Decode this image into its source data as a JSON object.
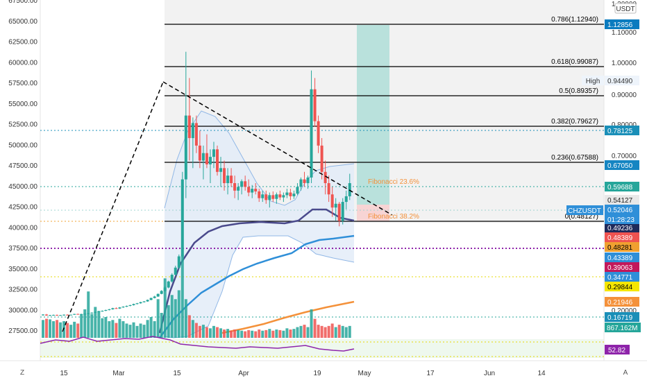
{
  "symbol": "CHZUSDT",
  "quote": "USDT",
  "countdown": "01:28:23",
  "volume_label": "867.162M",
  "rsi_label": "52.82",
  "buttons": {
    "zoom": "Z",
    "auto": "A"
  },
  "colors": {
    "up": "#26a69a",
    "down": "#ef5350",
    "bb": "#90b7e6",
    "ma_dark": "#4a4a8c",
    "ma_blue": "#2f8fd8",
    "ma_orange": "#f4913a",
    "fib": "#f4913a",
    "rsi": "#8e24aa",
    "purple": "#8e24aa"
  },
  "chart_data": {
    "type": "candlestick",
    "left_axis_ticks": [
      67500,
      65000,
      62500,
      60000,
      57500,
      55000,
      52500,
      50000,
      47500,
      45000,
      42500,
      40000,
      37500,
      35000,
      32500,
      30000,
      27500
    ],
    "right_axis_ticks": [
      "1.20000",
      "1.10000",
      "1.00000",
      "0.90000",
      "0.80000",
      "0.70000",
      "0.20000"
    ],
    "x_ticks": [
      "15",
      "Mar",
      "15",
      "Apr",
      "19",
      "May",
      "17",
      "Jun",
      "14"
    ],
    "fib_levels": [
      {
        "label": "0.786(1.12940)",
        "value": 1.1294
      },
      {
        "label": "0.618(0.99087)",
        "value": 0.99087
      },
      {
        "label": "0.5(0.89357)",
        "value": 0.89357
      },
      {
        "label": "0.382(0.79627)",
        "value": 0.79627
      },
      {
        "label": "0.236(0.67588)",
        "value": 0.67588
      },
      {
        "label": "0(0.48127)",
        "value": 0.48127
      }
    ],
    "annotations": [
      {
        "text": "Fibonacci 23.6%"
      },
      {
        "text": "Fibonacci 38.2%"
      },
      {
        "text": "High",
        "value": "0.94490"
      }
    ],
    "price_tags": [
      {
        "label": "1.12856",
        "bg": "#0a7bbf",
        "fg": "#ffffff"
      },
      {
        "label": "0.78125",
        "bg": "#1a8fb8",
        "fg": "#ffffff"
      },
      {
        "label": "0.67050",
        "bg": "#1585c2",
        "fg": "#ffffff"
      },
      {
        "label": "0.59688",
        "bg": "#26a69a",
        "fg": "#ffffff"
      },
      {
        "label": "0.54127",
        "bg": "#e8e8e8",
        "fg": "#222222"
      },
      {
        "label": "0.52046",
        "bg": "#2f8fd8",
        "fg": "#ffffff"
      },
      {
        "label": "0.49236",
        "bg": "#1f2a5a",
        "fg": "#ffffff"
      },
      {
        "label": "0.48389",
        "bg": "#ef5350",
        "fg": "#ffffff"
      },
      {
        "label": "0.48281",
        "bg": "#f0a030",
        "fg": "#000000"
      },
      {
        "label": "0.43389",
        "bg": "#2f8fd8",
        "fg": "#ffffff"
      },
      {
        "label": "0.39063",
        "bg": "#c2185b",
        "fg": "#ffffff"
      },
      {
        "label": "0.34771",
        "bg": "#2f8fd8",
        "fg": "#ffffff"
      },
      {
        "label": "0.29844",
        "bg": "#f5e600",
        "fg": "#000000"
      },
      {
        "label": "0.21946",
        "bg": "#f4913a",
        "fg": "#ffffff"
      },
      {
        "label": "0.16719",
        "bg": "#1a8fb8",
        "fg": "#ffffff"
      }
    ],
    "candles": [
      {
        "o": 0.168,
        "h": 0.171,
        "l": 0.167,
        "c": 0.17,
        "v": 30
      },
      {
        "o": 0.17,
        "h": 0.1715,
        "l": 0.1665,
        "c": 0.1675,
        "v": 32
      },
      {
        "o": 0.1675,
        "h": 0.169,
        "l": 0.166,
        "c": 0.1685,
        "v": 31
      },
      {
        "o": 0.1685,
        "h": 0.17,
        "l": 0.167,
        "c": 0.169,
        "v": 28
      },
      {
        "o": 0.169,
        "h": 0.17,
        "l": 0.1675,
        "c": 0.168,
        "v": 30
      },
      {
        "o": 0.168,
        "h": 0.169,
        "l": 0.167,
        "c": 0.1685,
        "v": 26
      },
      {
        "o": 0.1685,
        "h": 0.1705,
        "l": 0.167,
        "c": 0.1695,
        "v": 28
      },
      {
        "o": 0.1695,
        "h": 0.171,
        "l": 0.1685,
        "c": 0.169,
        "v": 25
      },
      {
        "o": 0.169,
        "h": 0.17,
        "l": 0.168,
        "c": 0.1695,
        "v": 22
      },
      {
        "o": 0.1695,
        "h": 0.172,
        "l": 0.169,
        "c": 0.1715,
        "v": 27
      },
      {
        "o": 0.1715,
        "h": 0.1725,
        "l": 0.17,
        "c": 0.1705,
        "v": 24
      },
      {
        "o": 0.1705,
        "h": 0.172,
        "l": 0.1695,
        "c": 0.1712,
        "v": 40
      },
      {
        "o": 0.1712,
        "h": 0.173,
        "l": 0.1705,
        "c": 0.172,
        "v": 48
      },
      {
        "o": 0.172,
        "h": 0.174,
        "l": 0.171,
        "c": 0.1735,
        "v": 78
      },
      {
        "o": 0.1735,
        "h": 0.176,
        "l": 0.1725,
        "c": 0.175,
        "v": 40
      },
      {
        "o": 0.175,
        "h": 0.178,
        "l": 0.174,
        "c": 0.177,
        "v": 52
      },
      {
        "o": 0.177,
        "h": 0.18,
        "l": 0.176,
        "c": 0.179,
        "v": 45
      },
      {
        "o": 0.179,
        "h": 0.181,
        "l": 0.1775,
        "c": 0.18,
        "v": 33
      },
      {
        "o": 0.18,
        "h": 0.183,
        "l": 0.179,
        "c": 0.182,
        "v": 35
      },
      {
        "o": 0.182,
        "h": 0.185,
        "l": 0.181,
        "c": 0.184,
        "v": 28
      },
      {
        "o": 0.184,
        "h": 0.188,
        "l": 0.183,
        "c": 0.187,
        "v": 30
      },
      {
        "o": 0.187,
        "h": 0.189,
        "l": 0.185,
        "c": 0.186,
        "v": 25
      },
      {
        "o": 0.186,
        "h": 0.19,
        "l": 0.185,
        "c": 0.189,
        "v": 32
      },
      {
        "o": 0.189,
        "h": 0.192,
        "l": 0.188,
        "c": 0.191,
        "v": 28
      },
      {
        "o": 0.191,
        "h": 0.194,
        "l": 0.19,
        "c": 0.193,
        "v": 24
      },
      {
        "o": 0.193,
        "h": 0.196,
        "l": 0.192,
        "c": 0.195,
        "v": 22
      },
      {
        "o": 0.195,
        "h": 0.199,
        "l": 0.194,
        "c": 0.198,
        "v": 26
      },
      {
        "o": 0.198,
        "h": 0.201,
        "l": 0.197,
        "c": 0.2,
        "v": 20
      },
      {
        "o": 0.2,
        "h": 0.204,
        "l": 0.199,
        "c": 0.203,
        "v": 24
      },
      {
        "o": 0.203,
        "h": 0.206,
        "l": 0.202,
        "c": 0.205,
        "v": 22
      },
      {
        "o": 0.205,
        "h": 0.21,
        "l": 0.204,
        "c": 0.209,
        "v": 30
      },
      {
        "o": 0.209,
        "h": 0.215,
        "l": 0.208,
        "c": 0.214,
        "v": 35
      },
      {
        "o": 0.214,
        "h": 0.22,
        "l": 0.213,
        "c": 0.218,
        "v": 28
      },
      {
        "o": 0.218,
        "h": 0.226,
        "l": 0.217,
        "c": 0.225,
        "v": 65
      },
      {
        "o": 0.225,
        "h": 0.235,
        "l": 0.224,
        "c": 0.233,
        "v": 42
      },
      {
        "o": 0.233,
        "h": 0.245,
        "l": 0.231,
        "c": 0.242,
        "v": 100
      },
      {
        "o": 0.242,
        "h": 0.26,
        "l": 0.24,
        "c": 0.258,
        "v": 55
      },
      {
        "o": 0.258,
        "h": 0.28,
        "l": 0.255,
        "c": 0.276,
        "v": 72
      },
      {
        "o": 0.276,
        "h": 0.3,
        "l": 0.274,
        "c": 0.295,
        "v": 65
      },
      {
        "o": 0.295,
        "h": 0.33,
        "l": 0.29,
        "c": 0.325,
        "v": 80
      },
      {
        "o": 0.325,
        "h": 0.55,
        "l": 0.32,
        "c": 0.53,
        "v": 140
      },
      {
        "o": 0.53,
        "h": 0.87,
        "l": 0.48,
        "c": 0.7,
        "v": 65
      },
      {
        "o": 0.7,
        "h": 0.8,
        "l": 0.58,
        "c": 0.64,
        "v": 38
      },
      {
        "o": 0.64,
        "h": 0.695,
        "l": 0.56,
        "c": 0.68,
        "v": 30
      },
      {
        "o": 0.68,
        "h": 0.7,
        "l": 0.6,
        "c": 0.62,
        "v": 25
      },
      {
        "o": 0.62,
        "h": 0.66,
        "l": 0.56,
        "c": 0.58,
        "v": 20
      },
      {
        "o": 0.58,
        "h": 0.62,
        "l": 0.53,
        "c": 0.6,
        "v": 22
      },
      {
        "o": 0.6,
        "h": 0.65,
        "l": 0.56,
        "c": 0.57,
        "v": 18
      },
      {
        "o": 0.57,
        "h": 0.61,
        "l": 0.52,
        "c": 0.59,
        "v": 16
      },
      {
        "o": 0.59,
        "h": 0.63,
        "l": 0.56,
        "c": 0.61,
        "v": 20
      },
      {
        "o": 0.61,
        "h": 0.62,
        "l": 0.54,
        "c": 0.55,
        "v": 18
      },
      {
        "o": 0.55,
        "h": 0.59,
        "l": 0.51,
        "c": 0.56,
        "v": 16
      },
      {
        "o": 0.56,
        "h": 0.58,
        "l": 0.5,
        "c": 0.52,
        "v": 14
      },
      {
        "o": 0.52,
        "h": 0.56,
        "l": 0.49,
        "c": 0.54,
        "v": 15
      },
      {
        "o": 0.54,
        "h": 0.56,
        "l": 0.51,
        "c": 0.52,
        "v": 12
      },
      {
        "o": 0.52,
        "h": 0.54,
        "l": 0.48,
        "c": 0.5,
        "v": 14
      },
      {
        "o": 0.5,
        "h": 0.52,
        "l": 0.475,
        "c": 0.51,
        "v": 13
      },
      {
        "o": 0.51,
        "h": 0.53,
        "l": 0.49,
        "c": 0.525,
        "v": 12
      },
      {
        "o": 0.525,
        "h": 0.54,
        "l": 0.5,
        "c": 0.51,
        "v": 11
      },
      {
        "o": 0.51,
        "h": 0.53,
        "l": 0.485,
        "c": 0.495,
        "v": 13
      },
      {
        "o": 0.495,
        "h": 0.515,
        "l": 0.48,
        "c": 0.505,
        "v": 12
      },
      {
        "o": 0.505,
        "h": 0.52,
        "l": 0.49,
        "c": 0.498,
        "v": 11
      },
      {
        "o": 0.498,
        "h": 0.505,
        "l": 0.47,
        "c": 0.48,
        "v": 14
      },
      {
        "o": 0.48,
        "h": 0.5,
        "l": 0.47,
        "c": 0.49,
        "v": 12
      },
      {
        "o": 0.49,
        "h": 0.5,
        "l": 0.465,
        "c": 0.475,
        "v": 13
      },
      {
        "o": 0.475,
        "h": 0.495,
        "l": 0.455,
        "c": 0.488,
        "v": 15
      },
      {
        "o": 0.488,
        "h": 0.498,
        "l": 0.47,
        "c": 0.478,
        "v": 12
      },
      {
        "o": 0.478,
        "h": 0.495,
        "l": 0.465,
        "c": 0.49,
        "v": 14
      },
      {
        "o": 0.49,
        "h": 0.5,
        "l": 0.475,
        "c": 0.482,
        "v": 13
      },
      {
        "o": 0.482,
        "h": 0.495,
        "l": 0.47,
        "c": 0.488,
        "v": 12
      },
      {
        "o": 0.488,
        "h": 0.505,
        "l": 0.48,
        "c": 0.495,
        "v": 16
      },
      {
        "o": 0.495,
        "h": 0.505,
        "l": 0.475,
        "c": 0.485,
        "v": 14
      },
      {
        "o": 0.485,
        "h": 0.5,
        "l": 0.478,
        "c": 0.492,
        "v": 15
      },
      {
        "o": 0.492,
        "h": 0.52,
        "l": 0.488,
        "c": 0.51,
        "v": 18
      },
      {
        "o": 0.51,
        "h": 0.535,
        "l": 0.5,
        "c": 0.53,
        "v": 20
      },
      {
        "o": 0.53,
        "h": 0.55,
        "l": 0.51,
        "c": 0.52,
        "v": 22
      },
      {
        "o": 0.52,
        "h": 0.54,
        "l": 0.505,
        "c": 0.535,
        "v": 18
      },
      {
        "o": 0.535,
        "h": 0.82,
        "l": 0.52,
        "c": 0.77,
        "v": 48
      },
      {
        "o": 0.77,
        "h": 0.8,
        "l": 0.67,
        "c": 0.685,
        "v": 32
      },
      {
        "o": 0.685,
        "h": 0.7,
        "l": 0.6,
        "c": 0.62,
        "v": 22
      },
      {
        "o": 0.62,
        "h": 0.64,
        "l": 0.53,
        "c": 0.55,
        "v": 20
      },
      {
        "o": 0.55,
        "h": 0.58,
        "l": 0.49,
        "c": 0.52,
        "v": 18
      },
      {
        "o": 0.52,
        "h": 0.54,
        "l": 0.47,
        "c": 0.49,
        "v": 20
      },
      {
        "o": 0.49,
        "h": 0.51,
        "l": 0.43,
        "c": 0.455,
        "v": 24
      },
      {
        "o": 0.455,
        "h": 0.48,
        "l": 0.42,
        "c": 0.465,
        "v": 18
      },
      {
        "o": 0.465,
        "h": 0.47,
        "l": 0.405,
        "c": 0.42,
        "v": 22
      },
      {
        "o": 0.42,
        "h": 0.48,
        "l": 0.41,
        "c": 0.47,
        "v": 20
      },
      {
        "o": 0.47,
        "h": 0.5,
        "l": 0.45,
        "c": 0.485,
        "v": 18
      },
      {
        "o": 0.485,
        "h": 0.545,
        "l": 0.475,
        "c": 0.52,
        "v": 20
      }
    ]
  }
}
